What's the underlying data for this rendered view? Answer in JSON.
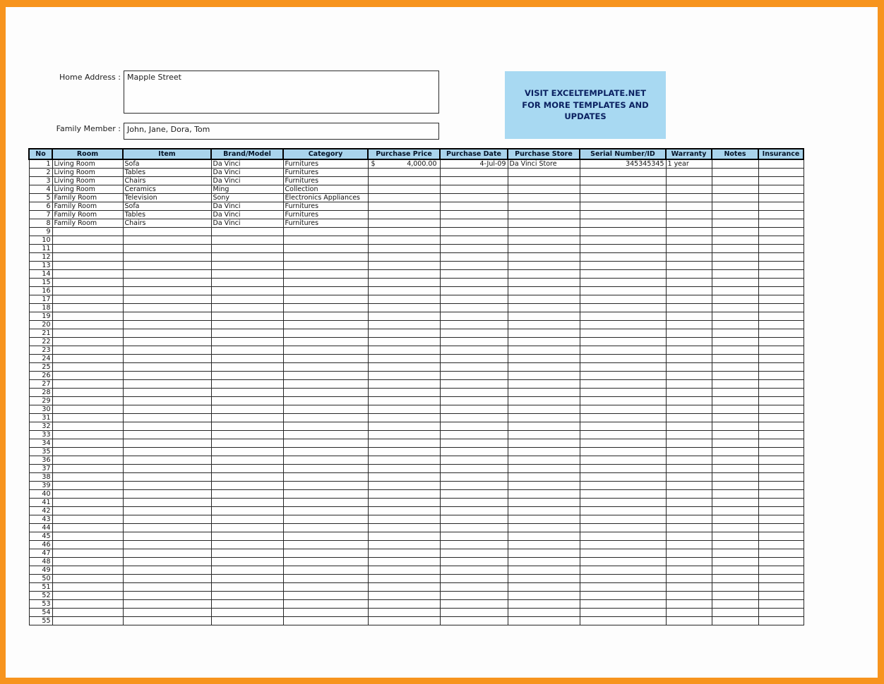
{
  "colors": {
    "frame_orange": "#F7941E",
    "header_blue": "#A9D4EC",
    "promo_blue": "#A8D9F2",
    "promo_text": "#0B2161"
  },
  "form": {
    "home_address_label": "Home Address :",
    "home_address_value": "Mapple Street",
    "family_member_label": "Family Member :",
    "family_member_value": "John, Jane, Dora, Tom"
  },
  "promo": {
    "text": "VISIT EXCELTEMPLATE.NET FOR MORE TEMPLATES AND UPDATES"
  },
  "table": {
    "row_count": 55,
    "columns": [
      {
        "key": "no",
        "label": "No"
      },
      {
        "key": "room",
        "label": "Room"
      },
      {
        "key": "item",
        "label": "Item"
      },
      {
        "key": "brand_model",
        "label": "Brand/Model"
      },
      {
        "key": "category",
        "label": "Category"
      },
      {
        "key": "purchase_price",
        "label": "Purchase Price"
      },
      {
        "key": "purchase_date",
        "label": "Purchase Date"
      },
      {
        "key": "purchase_store",
        "label": "Purchase Store"
      },
      {
        "key": "serial_number",
        "label": "Serial Number/ID"
      },
      {
        "key": "warranty",
        "label": "Warranty"
      },
      {
        "key": "notes",
        "label": "Notes"
      },
      {
        "key": "insurance",
        "label": "Insurance"
      }
    ],
    "rows": [
      {
        "no": 1,
        "room": "Living Room",
        "item": "Sofa",
        "brand_model": "Da Vinci",
        "category": "Furnitures",
        "purchase_price_symbol": "$",
        "purchase_price": "4,000.00",
        "purchase_date": "4-Jul-09",
        "purchase_store": "Da Vinci Store",
        "serial_number": "345345345",
        "warranty": "1 year",
        "notes": "",
        "insurance": ""
      },
      {
        "no": 2,
        "room": "Living Room",
        "item": "Tables",
        "brand_model": "Da Vinci",
        "category": "Furnitures"
      },
      {
        "no": 3,
        "room": "Living Room",
        "item": "Chairs",
        "brand_model": "Da Vinci",
        "category": "Furnitures"
      },
      {
        "no": 4,
        "room": "Living Room",
        "item": "Ceramics",
        "brand_model": "Ming",
        "category": "Collection"
      },
      {
        "no": 5,
        "room": "Family Room",
        "item": "Television",
        "brand_model": "Sony",
        "category": "Electronics Appliances"
      },
      {
        "no": 6,
        "room": "Family Room",
        "item": "Sofa",
        "brand_model": "Da Vinci",
        "category": "Furnitures"
      },
      {
        "no": 7,
        "room": "Family Room",
        "item": "Tables",
        "brand_model": "Da Vinci",
        "category": "Furnitures"
      },
      {
        "no": 8,
        "room": "Family Room",
        "item": "Chairs",
        "brand_model": "Da Vinci",
        "category": "Furnitures"
      }
    ]
  }
}
